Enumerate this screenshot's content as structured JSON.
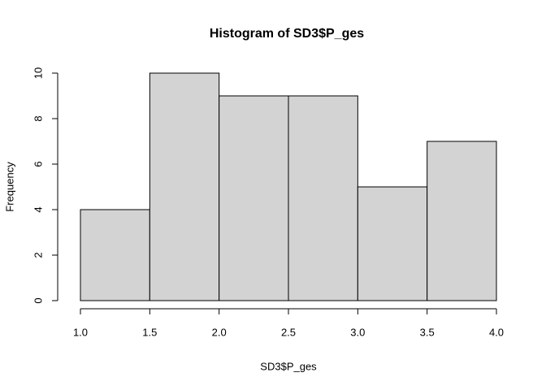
{
  "chart_data": {
    "type": "histogram",
    "title": "Histogram of SD3$P_ges",
    "x_label": "SD3$P_ges",
    "y_label": "Frequency",
    "bins": [
      1.0,
      1.5,
      2.0,
      2.5,
      3.0,
      3.5,
      4.0
    ],
    "counts": [
      4,
      10,
      9,
      9,
      5,
      7
    ],
    "color": "#d3d3d3",
    "xlim": [
      1.0,
      4.0
    ],
    "ylim": [
      0,
      10
    ],
    "xticks": [
      {
        "value": 1.0,
        "label": "1.0"
      },
      {
        "value": 1.5,
        "label": "1.5"
      },
      {
        "value": 2.0,
        "label": "2.0"
      },
      {
        "value": 2.5,
        "label": "2.5"
      },
      {
        "value": 3.0,
        "label": "3.0"
      },
      {
        "value": 3.5,
        "label": "3.5"
      },
      {
        "value": 4.0,
        "label": "4.0"
      }
    ],
    "yticks": [
      0,
      2,
      4,
      6,
      8,
      10
    ]
  }
}
